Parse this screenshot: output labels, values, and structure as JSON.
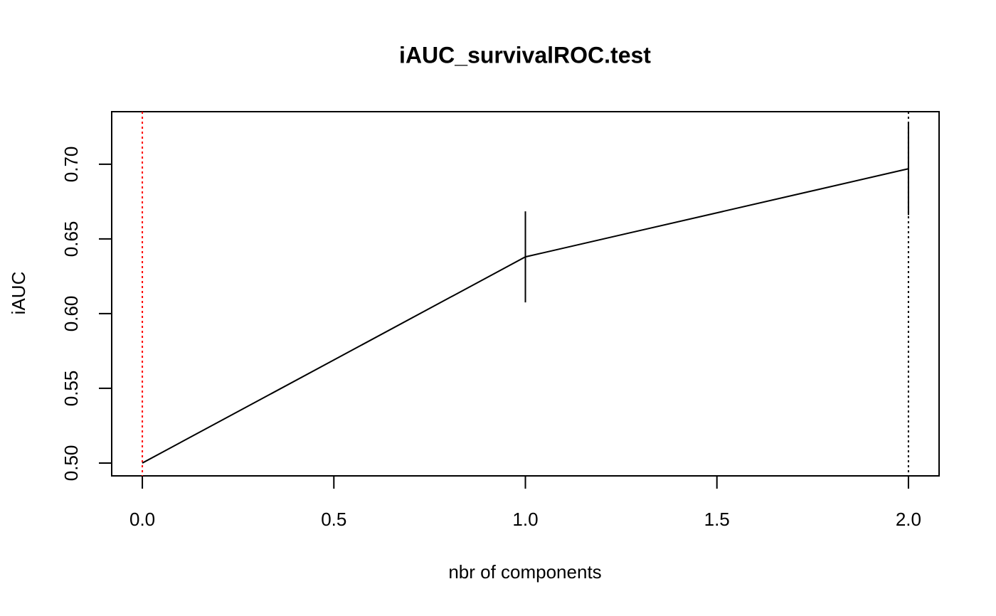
{
  "chart_data": {
    "type": "line",
    "title": "iAUC_survivalROC.test",
    "x_label": "nbr of components",
    "y_label": "iAUC",
    "x": [
      0,
      1,
      2
    ],
    "series": [
      {
        "color": "#000000",
        "values": [
          0.5,
          0.638,
          0.697
        ],
        "errors": [
          null,
          0.0305,
          0.031
        ]
      }
    ],
    "vlines": [
      {
        "x": 0,
        "color": "#ff0000"
      },
      {
        "x": 2,
        "color": "#000000"
      }
    ],
    "xlim": [
      -0.08,
      2.08
    ],
    "ylim": [
      0.4914,
      0.7352
    ],
    "xticks": [
      {
        "value": 0,
        "label": "0.0"
      },
      0.5,
      {
        "value": 1,
        "label": "1.0"
      },
      1.5,
      {
        "value": 2,
        "label": "2.0"
      }
    ],
    "yticks": [
      {
        "value": 0.5,
        "label": "0.50"
      },
      {
        "value": 0.55,
        "label": "0.55"
      },
      {
        "value": 0.6,
        "label": "0.60"
      },
      {
        "value": 0.65,
        "label": "0.65"
      },
      {
        "value": 0.7,
        "label": "0.70"
      }
    ]
  }
}
